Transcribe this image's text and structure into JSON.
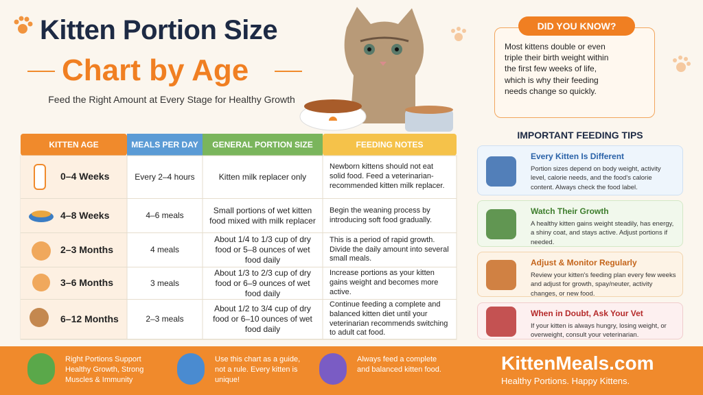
{
  "header": {
    "title_line1": "Kitten Portion Size",
    "title_line2": "Chart by Age",
    "subtitle": "Feed the Right Amount at Every Stage for Healthy Growth"
  },
  "table": {
    "headers": [
      "KITTEN AGE",
      "MEALS PER DAY",
      "GENERAL PORTION SIZE",
      "FEEDING NOTES"
    ],
    "rows": [
      [
        "0–4 Weeks",
        "Every 2–4 hours",
        "Kitten milk replacer only",
        "Newborn kittens should not eat solid food. Feed a veterinarian-recommended kitten milk replacer."
      ],
      [
        "4–8 Weeks",
        "4–6 meals",
        "Small portions of wet kitten food mixed with milk replacer",
        "Begin the weaning process by introducing soft food gradually."
      ],
      [
        "2–3 Months",
        "4 meals",
        "About 1/4 to 1/3 cup of dry food or 5–8 ounces of wet food daily",
        "This is a period of rapid growth. Divide the daily amount into several small meals."
      ],
      [
        "3–6 Months",
        "3 meals",
        "About 1/3 to 2/3 cup of dry food or 6–9 ounces of wet food daily",
        "Increase portions as your kitten gains weight and becomes more active."
      ],
      [
        "6–12 Months",
        "2–3 meals",
        "About 1/2 to 3/4 cup of dry food or 6–10 ounces of wet food daily",
        "Continue feeding a complete and balanced kitten diet until your veterinarian recommends switching to adult cat food."
      ]
    ]
  },
  "did_you_know": {
    "title": "DID YOU KNOW?",
    "text": "Most kittens double or even triple their birth weight within the first few weeks of life, which is why their feeding needs change so quickly."
  },
  "tips": {
    "title": "IMPORTANT FEEDING TIPS",
    "items": [
      {
        "title": "Every Kitten Is Different",
        "text": "Portion sizes depend on body weight, activity level, calorie needs, and the food's calorie content. Always check the food label."
      },
      {
        "title": "Watch Their Growth",
        "text": "A healthy kitten gains weight steadily, has energy, a shiny coat, and stays active. Adjust portions if needed."
      },
      {
        "title": "Adjust & Monitor Regularly",
        "text": "Review your kitten's feeding plan every few weeks and adjust for growth, spay/neuter, activity changes, or new food."
      },
      {
        "title": "When in Doubt, Ask Your Vet",
        "text": "If your kitten is always hungry, losing weight, or overweight, consult your veterinarian."
      }
    ]
  },
  "footer": {
    "items": [
      "Right Portions Support Healthy Growth, Strong Muscles & Immunity",
      "Use this chart as a guide, not a rule. Every kitten is unique!",
      "Always feed a complete and balanced kitten food."
    ],
    "brand": "KittenMeals.com",
    "tagline": "Healthy Portions. Happy Kittens."
  }
}
